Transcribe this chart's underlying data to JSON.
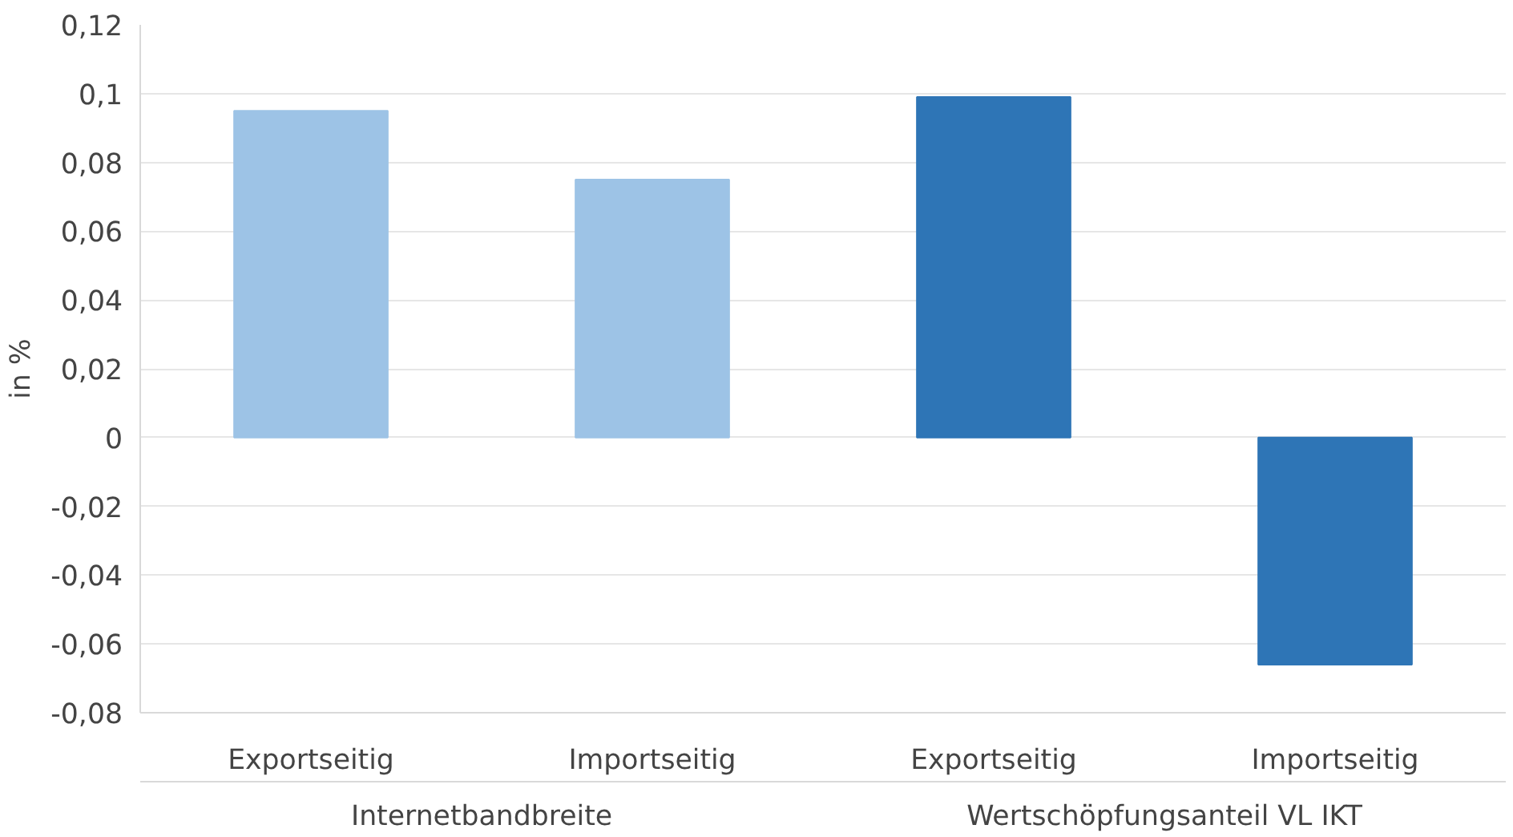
{
  "chart_data": {
    "type": "bar",
    "ylabel": "in %",
    "categories": [
      "Exportseitig",
      "Importseitig",
      "Exportseitig",
      "Importseitig"
    ],
    "values": [
      0.095,
      0.075,
      0.099,
      -0.066
    ],
    "colors": [
      "#9dc3e6",
      "#9dc3e6",
      "#2e75b6",
      "#2e75b6"
    ],
    "annotations": [
      "Internetbandbreite",
      "Wertschöpfungsanteil VL IKT"
    ],
    "ylim": [
      -0.08,
      0.12
    ],
    "yticks": [
      {
        "value": -0.08,
        "label": "-0,08"
      },
      {
        "value": -0.06,
        "label": "-0,06"
      },
      {
        "value": -0.04,
        "label": "-0,04"
      },
      {
        "value": -0.02,
        "label": "-0,02"
      },
      {
        "value": 0,
        "label": "0"
      },
      {
        "value": 0.02,
        "label": "0,02"
      },
      {
        "value": 0.04,
        "label": "0,04"
      },
      {
        "value": 0.06,
        "label": "0,06"
      },
      {
        "value": 0.08,
        "label": "0,08"
      },
      {
        "value": 0.1,
        "label": "0,1"
      },
      {
        "value": 0.12,
        "label": "0,12"
      }
    ],
    "grid": "y"
  }
}
